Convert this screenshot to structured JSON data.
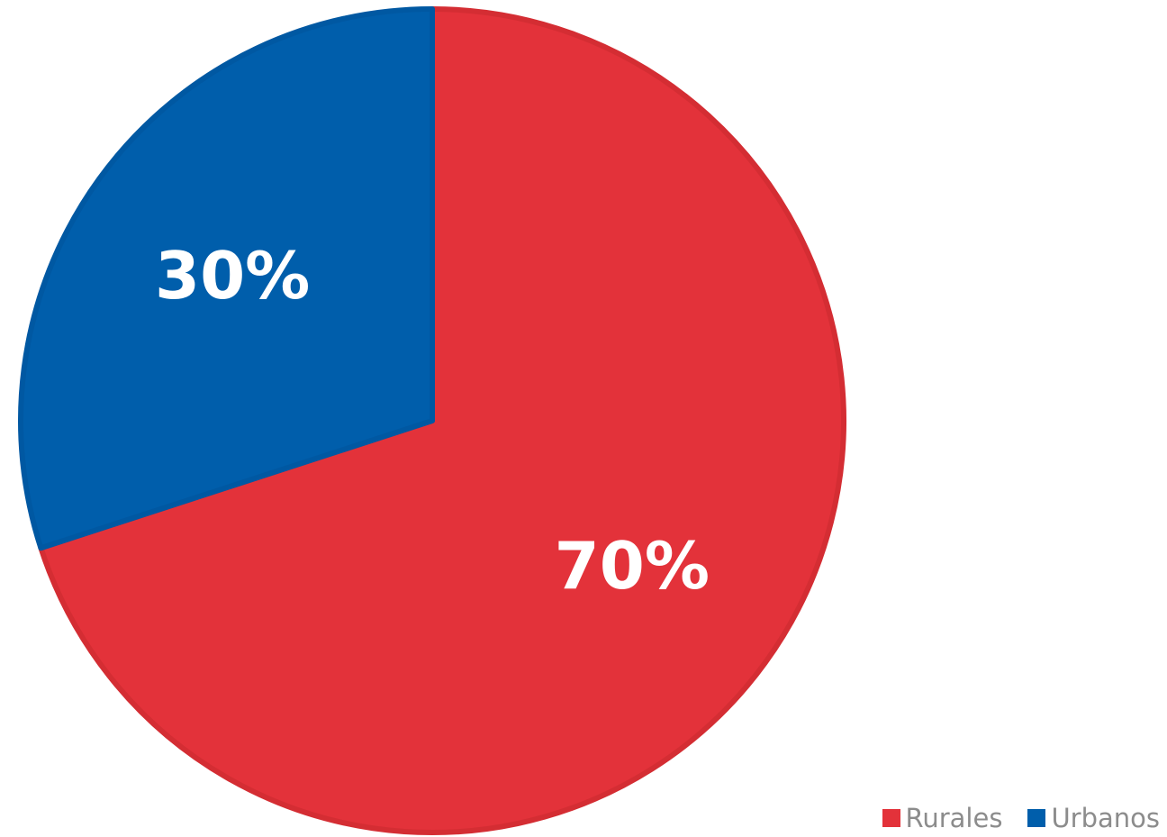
{
  "chart_data": {
    "type": "pie",
    "title": "",
    "labels": [
      "Rurales",
      "Urbanos"
    ],
    "values": [
      70,
      30
    ],
    "data_labels": [
      "70%",
      "30%"
    ],
    "colors": [
      "#e3323a",
      "#005eab"
    ],
    "edge_colors": [
      "#d42d33",
      "#0058a2"
    ],
    "legend_position": "bottom-right"
  }
}
